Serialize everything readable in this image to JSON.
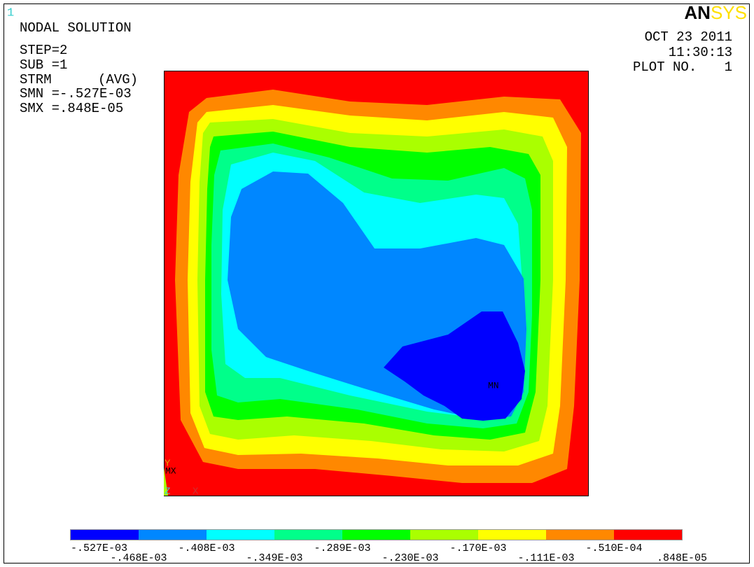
{
  "header": {
    "window_number": "1",
    "title": "NODAL SOLUTION",
    "step": "STEP=2",
    "sub": "SUB =1",
    "result": "STRM",
    "avg": "(AVG)",
    "smn": "SMN =-.527E-03",
    "smx": "SMX =.848E-05"
  },
  "logo": {
    "part1": "AN",
    "part2": "SYS"
  },
  "stamp": {
    "date": "OCT 23 2011",
    "time": "11:30:13",
    "plot_label": "PLOT NO.",
    "plot_number": "1"
  },
  "plot": {
    "min_label": "MN",
    "max_label": "MX",
    "axis_x": "X",
    "axis_y": "Y",
    "axis_z": "Z"
  },
  "legend": {
    "colors": [
      "#0000ff",
      "#0087ff",
      "#00ffff",
      "#00ff8a",
      "#00ff00",
      "#aaff00",
      "#ffff00",
      "#ff8800",
      "#ff0000"
    ],
    "labels": [
      "-.527E-03",
      "-.468E-03",
      "-.408E-03",
      "-.349E-03",
      "-.289E-03",
      "-.230E-03",
      "-.170E-03",
      "-.111E-03",
      "-.510E-04",
      ".848E-05"
    ]
  }
}
